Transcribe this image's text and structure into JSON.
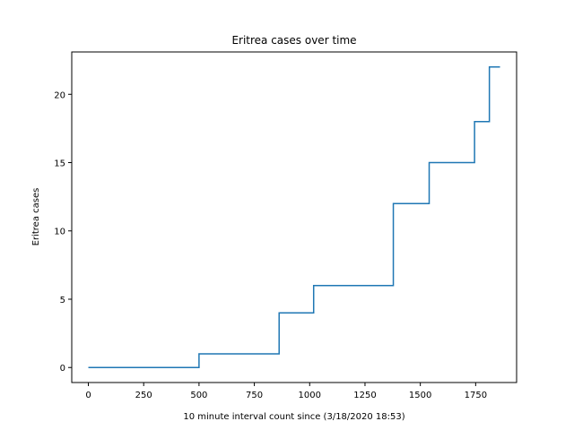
{
  "chart_data": {
    "type": "line",
    "title": "Eritrea cases over time",
    "xlabel": "10 minute interval count since (3/18/2020 18:53)",
    "ylabel": "Eritrea cases",
    "xlim": [
      -75,
      1935
    ],
    "ylim": [
      -1.1,
      23.1
    ],
    "xticks": [
      0,
      250,
      500,
      750,
      1000,
      1250,
      1500,
      1750
    ],
    "yticks": [
      0,
      5,
      10,
      15,
      20
    ],
    "grid": false,
    "color": "#1f77b4",
    "series": [
      {
        "step": "post",
        "x": [
          0,
          500,
          862,
          1018,
          1378,
          1540,
          1745,
          1812,
          1860
        ],
        "y": [
          0,
          1,
          4,
          6,
          12,
          15,
          18,
          22,
          22
        ]
      }
    ]
  }
}
